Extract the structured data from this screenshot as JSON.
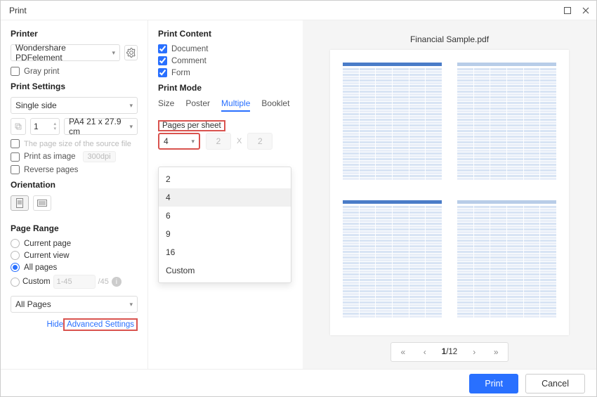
{
  "window": {
    "title": "Print"
  },
  "printer": {
    "heading": "Printer",
    "selected": "Wondershare PDFelement",
    "gray_print": "Gray print"
  },
  "print_settings": {
    "heading": "Print Settings",
    "mode": "Single side",
    "copies": "1",
    "paper": "PA4 21 x 27.9 cm",
    "source_size_note": "The page size of the source file",
    "print_as_image": "Print as image",
    "dpi": "300dpi",
    "reverse_pages": "Reverse pages"
  },
  "orientation": {
    "heading": "Orientation"
  },
  "page_range": {
    "heading": "Page Range",
    "current_page": "Current page",
    "current_view": "Current view",
    "all_pages": "All pages",
    "custom": "Custom",
    "custom_ph": "1-45",
    "total_suffix": "/45",
    "filter": "All Pages"
  },
  "advanced": {
    "hide": "Hide",
    "label": "Advanced Settings"
  },
  "print_content": {
    "heading": "Print Content",
    "document": "Document",
    "comment": "Comment",
    "form": "Form"
  },
  "print_mode": {
    "heading": "Print Mode",
    "tabs": {
      "size": "Size",
      "poster": "Poster",
      "multiple": "Multiple",
      "booklet": "Booklet"
    },
    "pps_label": "Pages per sheet",
    "pps_value": "4",
    "dim1": "2",
    "dim_x": "X",
    "dim2": "2",
    "options": {
      "o2": "2",
      "o4": "4",
      "o6": "6",
      "o9": "9",
      "o16": "16",
      "custom": "Custom"
    }
  },
  "preview": {
    "filename": "Financial Sample.pdf",
    "page_current": "1",
    "page_total": "/12"
  },
  "footer": {
    "print": "Print",
    "cancel": "Cancel"
  }
}
